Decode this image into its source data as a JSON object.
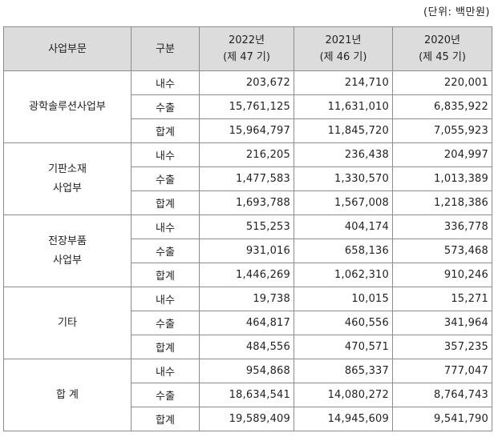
{
  "unit_note": "(단위: 백만원)",
  "header": {
    "segment": "사업부문",
    "type": "구분",
    "years": [
      {
        "year": "2022년",
        "period": "(제 47 기)"
      },
      {
        "year": "2021년",
        "period": "(제 46 기)"
      },
      {
        "year": "2020년",
        "period": "(제 45 기)"
      }
    ]
  },
  "groups": [
    {
      "segment_line1": "광학솔루션사업부",
      "segment_line2": "",
      "rows": [
        {
          "type": "내수",
          "values": [
            "203,672",
            "214,710",
            "220,001"
          ]
        },
        {
          "type": "수출",
          "values": [
            "15,761,125",
            "11,631,010",
            "6,835,922"
          ]
        },
        {
          "type": "합계",
          "values": [
            "15,964,797",
            "11,845,720",
            "7,055,923"
          ]
        }
      ]
    },
    {
      "segment_line1": "기판소재",
      "segment_line2": "사업부",
      "rows": [
        {
          "type": "내수",
          "values": [
            "216,205",
            "236,438",
            "204,997"
          ]
        },
        {
          "type": "수출",
          "values": [
            "1,477,583",
            "1,330,570",
            "1,013,389"
          ]
        },
        {
          "type": "합계",
          "values": [
            "1,693,788",
            "1,567,008",
            "1,218,386"
          ]
        }
      ]
    },
    {
      "segment_line1": "전장부품",
      "segment_line2": "사업부",
      "rows": [
        {
          "type": "내수",
          "values": [
            "515,253",
            "404,174",
            "336,778"
          ]
        },
        {
          "type": "수출",
          "values": [
            "931,016",
            "658,136",
            "573,468"
          ]
        },
        {
          "type": "합계",
          "values": [
            "1,446,269",
            "1,062,310",
            "910,246"
          ]
        }
      ]
    },
    {
      "segment_line1": "기타",
      "segment_line2": "",
      "rows": [
        {
          "type": "내수",
          "values": [
            "19,738",
            "10,015",
            "15,271"
          ]
        },
        {
          "type": "수출",
          "values": [
            "464,817",
            "460,556",
            "341,964"
          ]
        },
        {
          "type": "합계",
          "values": [
            "484,556",
            "470,571",
            "357,235"
          ]
        }
      ]
    },
    {
      "segment_line1": "합 계",
      "segment_line2": "",
      "rows": [
        {
          "type": "내수",
          "values": [
            "954,868",
            "865,337",
            "777,047"
          ]
        },
        {
          "type": "수출",
          "values": [
            "18,634,541",
            "14,080,272",
            "8,764,743"
          ]
        },
        {
          "type": "합계",
          "values": [
            "19,589,409",
            "14,945,609",
            "9,541,790"
          ]
        }
      ]
    }
  ],
  "colors": {
    "header_bg": "#dcdcdc",
    "border": "#8c8c8c",
    "outer_border": "#222222"
  }
}
